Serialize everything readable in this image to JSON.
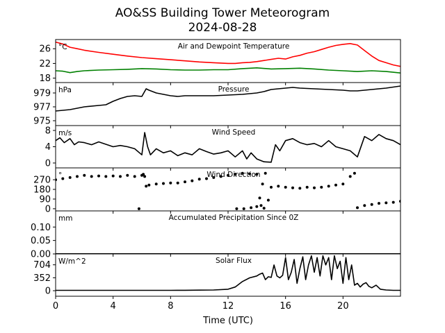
{
  "figure": {
    "title": "AO&SS Building Tower Meteorogram",
    "subtitle": "2024-08-28",
    "xlabel": "Time (UTC)",
    "x_ticks": [
      "0",
      "4",
      "8",
      "12",
      "16",
      "20"
    ]
  },
  "chart_data": [
    {
      "id": "temp",
      "type": "line",
      "title": "Air and Dewpoint Temperature",
      "unit": "°C",
      "xlim": [
        0,
        24
      ],
      "ylim": [
        16.8,
        28.5
      ],
      "y_ticks": [
        18,
        22,
        26
      ],
      "y_tick_labels": [
        "18",
        "22",
        "26"
      ],
      "grid": false,
      "series": [
        {
          "color": "#ff0000",
          "x": [
            0,
            0.5,
            1,
            1.5,
            2,
            3,
            4,
            5,
            6,
            7,
            8,
            9,
            10,
            11,
            12,
            12.5,
            13,
            13.5,
            14,
            14.5,
            15,
            15.5,
            16,
            16.5,
            17,
            17.5,
            18,
            18.5,
            19,
            19.5,
            20,
            20.5,
            21,
            21.5,
            22,
            22.5,
            23,
            23.5,
            24
          ],
          "y": [
            27.8,
            27.3,
            26.4,
            26.0,
            25.6,
            25.0,
            24.5,
            24.0,
            23.6,
            23.3,
            23.0,
            22.7,
            22.4,
            22.2,
            22.0,
            22.0,
            22.2,
            22.3,
            22.5,
            22.8,
            23.1,
            23.4,
            23.2,
            23.8,
            24.2,
            24.8,
            25.2,
            25.8,
            26.4,
            26.9,
            27.2,
            27.4,
            27.0,
            25.5,
            24.0,
            22.8,
            22.2,
            21.6,
            21.2
          ]
        },
        {
          "color": "#008000",
          "x": [
            0,
            0.5,
            1,
            1.5,
            2,
            3,
            4,
            5,
            6,
            7,
            8,
            9,
            10,
            11,
            12,
            13,
            14,
            15,
            16,
            17,
            18,
            19,
            20,
            21,
            22,
            23,
            24
          ],
          "y": [
            20.0,
            19.9,
            19.5,
            19.8,
            20.0,
            20.2,
            20.3,
            20.4,
            20.6,
            20.5,
            20.3,
            20.2,
            20.2,
            20.3,
            20.3,
            20.6,
            20.8,
            20.5,
            20.6,
            20.7,
            20.5,
            20.2,
            20.0,
            19.8,
            20.0,
            19.8,
            19.4
          ]
        }
      ]
    },
    {
      "id": "pressure",
      "type": "line",
      "title": "Pressure",
      "unit": "hPa",
      "xlim": [
        0,
        24
      ],
      "ylim": [
        974.3,
        980.5
      ],
      "y_ticks": [
        975,
        977,
        979
      ],
      "y_tick_labels": [
        "975",
        "977",
        "979"
      ],
      "grid": false,
      "series": [
        {
          "color": "#000000",
          "x": [
            0,
            1,
            2,
            3,
            3.5,
            4,
            4.5,
            5,
            5.5,
            6,
            6.3,
            6.5,
            7,
            7.5,
            8,
            8.5,
            9,
            10,
            11,
            12,
            13,
            14,
            14.5,
            15,
            16,
            16.5,
            17,
            18,
            19,
            20,
            20.5,
            21,
            22,
            23,
            24
          ],
          "y": [
            976.4,
            976.6,
            977.0,
            977.2,
            977.3,
            977.8,
            978.2,
            978.5,
            978.6,
            978.5,
            979.6,
            979.4,
            979.0,
            978.8,
            978.6,
            978.5,
            978.6,
            978.6,
            978.6,
            978.7,
            978.8,
            979.0,
            979.2,
            979.5,
            979.7,
            979.8,
            979.7,
            979.6,
            979.5,
            979.4,
            979.3,
            979.3,
            979.5,
            979.7,
            980.0
          ]
        }
      ]
    },
    {
      "id": "wind_speed",
      "type": "line",
      "title": "Wind Speed",
      "unit": "m/s",
      "xlim": [
        0,
        24
      ],
      "ylim": [
        -1.2,
        9.2
      ],
      "y_ticks": [
        0,
        4,
        8
      ],
      "y_tick_labels": [
        "0",
        "4",
        "8"
      ],
      "grid": false,
      "series": [
        {
          "color": "#000000",
          "x": [
            0,
            0.3,
            0.6,
            1,
            1.3,
            1.6,
            2,
            2.5,
            3,
            3.5,
            4,
            4.5,
            5,
            5.5,
            6,
            6.2,
            6.4,
            6.6,
            7,
            7.5,
            8,
            8.5,
            9,
            9.5,
            10,
            10.5,
            11,
            11.5,
            12,
            12.5,
            13,
            13.3,
            13.6,
            14,
            14.5,
            15,
            15.3,
            15.6,
            16,
            16.5,
            17,
            17.5,
            18,
            18.5,
            19,
            19.5,
            20,
            20.5,
            21,
            21.5,
            22,
            22.5,
            23,
            23.5,
            24
          ],
          "y": [
            5.5,
            6.2,
            5.0,
            6.0,
            4.5,
            5.2,
            5.0,
            4.5,
            5.2,
            4.6,
            4.0,
            4.3,
            4.0,
            3.5,
            2.0,
            7.5,
            4.0,
            2.0,
            3.5,
            2.5,
            3.0,
            1.8,
            2.5,
            2.0,
            3.5,
            2.8,
            2.2,
            2.5,
            3.0,
            1.5,
            3.0,
            1.0,
            2.5,
            1.0,
            0.3,
            0.2,
            4.5,
            3.0,
            5.5,
            6.0,
            5.0,
            4.5,
            4.8,
            4.0,
            5.5,
            4.0,
            3.5,
            3.0,
            1.5,
            6.5,
            5.5,
            7.0,
            6.0,
            5.5,
            4.5
          ]
        }
      ]
    },
    {
      "id": "wind_direction",
      "type": "scatter",
      "title": "Wind Direction",
      "unit": "°",
      "xlim": [
        0,
        24
      ],
      "ylim": [
        -20,
        380
      ],
      "y_ticks": [
        0,
        90,
        180,
        270
      ],
      "y_tick_labels": [
        "0",
        "90",
        "180",
        "270"
      ],
      "grid": false,
      "series": [
        {
          "color": "#000000",
          "x": [
            0,
            0.5,
            1,
            1.5,
            2,
            2.5,
            3,
            3.5,
            4,
            4.5,
            5,
            5.5,
            5.8,
            6.0,
            6.1,
            6.2,
            6.3,
            6.5,
            7,
            7.5,
            8,
            8.5,
            9,
            9.5,
            10,
            10.5,
            11,
            11.5,
            12,
            12.5,
            13,
            13.5,
            14,
            14.2,
            14.4,
            14.6,
            14.8,
            15,
            15.5,
            16,
            16.5,
            17,
            17.5,
            18,
            18.5,
            19,
            19.5,
            20,
            20.5,
            20.8,
            21.0,
            21.5,
            22,
            22.5,
            23,
            23.5,
            24,
            12.6,
            13.1,
            13.6,
            14.0,
            14.3,
            14.5
          ],
          "y": [
            270,
            280,
            290,
            300,
            310,
            300,
            305,
            300,
            305,
            300,
            310,
            300,
            0,
            310,
            320,
            300,
            210,
            220,
            230,
            235,
            240,
            240,
            250,
            260,
            275,
            280,
            290,
            300,
            310,
            320,
            330,
            325,
            320,
            100,
            230,
            330,
            80,
            200,
            210,
            200,
            195,
            190,
            200,
            195,
            200,
            210,
            220,
            230,
            300,
            330,
            10,
            30,
            40,
            50,
            55,
            60,
            70,
            0,
            0,
            10,
            20,
            30,
            5
          ]
        }
      ]
    },
    {
      "id": "precip",
      "type": "line",
      "title": "Accumulated Precipitation Since 0Z",
      "unit": "mm",
      "xlim": [
        0,
        24
      ],
      "ylim": [
        0,
        0.16
      ],
      "y_ticks": [
        0.0,
        0.05,
        0.1
      ],
      "y_tick_labels": [
        "0.00",
        "0.05",
        "0.10"
      ],
      "grid": false,
      "series": [
        {
          "color": "#000000",
          "x": [
            0,
            24
          ],
          "y": [
            0,
            0
          ]
        }
      ]
    },
    {
      "id": "solar",
      "type": "line",
      "title": "Solar Flux",
      "unit": "W/m^2",
      "xlim": [
        0,
        24
      ],
      "ylim": [
        -150,
        1000
      ],
      "y_ticks": [
        0,
        352,
        704
      ],
      "y_tick_labels": [
        "0",
        "352",
        "704"
      ],
      "grid": false,
      "series": [
        {
          "color": "#000000",
          "x": [
            0,
            1,
            2,
            3,
            4,
            5,
            6,
            7,
            8,
            9,
            10,
            11,
            12,
            12.5,
            13,
            13.5,
            14,
            14.2,
            14.4,
            14.6,
            14.8,
            15,
            15.2,
            15.4,
            15.6,
            15.8,
            16,
            16.2,
            16.4,
            16.6,
            16.8,
            17,
            17.2,
            17.4,
            17.6,
            17.8,
            18,
            18.2,
            18.4,
            18.6,
            18.8,
            19,
            19.2,
            19.4,
            19.6,
            19.8,
            20,
            20.2,
            20.4,
            20.6,
            20.8,
            21,
            21.2,
            21.4,
            21.6,
            21.8,
            22,
            22.3,
            22.6,
            23,
            23.5,
            24
          ],
          "y": [
            10,
            10,
            10,
            10,
            10,
            10,
            10,
            10,
            10,
            12,
            15,
            20,
            40,
            100,
            250,
            350,
            400,
            450,
            480,
            300,
            380,
            360,
            700,
            400,
            350,
            420,
            900,
            300,
            500,
            850,
            200,
            600,
            920,
            300,
            700,
            950,
            500,
            900,
            400,
            950,
            700,
            900,
            300,
            950,
            600,
            800,
            200,
            900,
            300,
            700,
            150,
            200,
            100,
            180,
            220,
            120,
            80,
            150,
            40,
            20,
            10,
            10
          ]
        }
      ]
    }
  ]
}
